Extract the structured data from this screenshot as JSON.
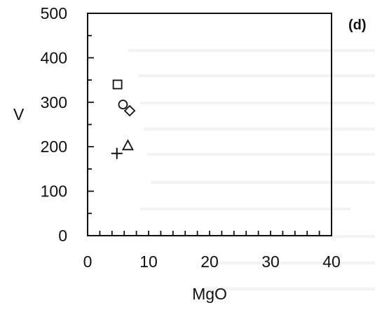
{
  "chart_data": {
    "type": "scatter",
    "panel_label": "(d)",
    "xlabel": "MgO",
    "ylabel": "V",
    "xlim": [
      0,
      40
    ],
    "ylim": [
      0,
      500
    ],
    "xticks": [
      0,
      10,
      20,
      30,
      40
    ],
    "yticks": [
      0,
      100,
      200,
      300,
      400,
      500
    ],
    "x_minor_step": 2,
    "y_minor_step": 50,
    "points": [
      {
        "marker": "square",
        "x": 4.9,
        "y": 340
      },
      {
        "marker": "circle",
        "x": 5.8,
        "y": 295
      },
      {
        "marker": "diamond",
        "x": 6.9,
        "y": 281
      },
      {
        "marker": "triangle",
        "x": 6.6,
        "y": 203
      },
      {
        "marker": "plus",
        "x": 4.8,
        "y": 185
      }
    ],
    "color": "#111111"
  }
}
